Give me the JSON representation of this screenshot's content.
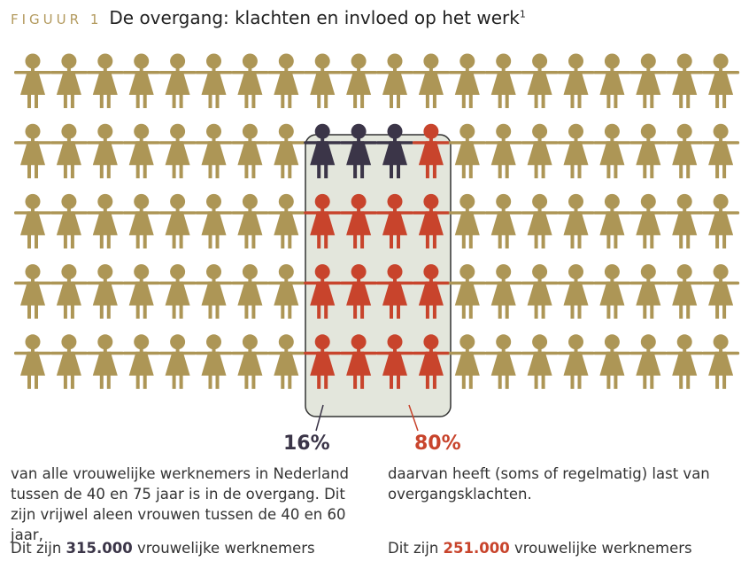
{
  "header": {
    "label": "FIGUUR 1",
    "title": "De overgang: klachten en invloed op het werk",
    "footnote": "1"
  },
  "colors": {
    "background_figure": "#ad9656",
    "menopause_figure": "#3b3548",
    "complaints_figure": "#c8442c",
    "highlight_box": "#e3e6dc"
  },
  "chart_data": {
    "type": "pictogram",
    "rows": 5,
    "columns": 20,
    "total_figures": 100,
    "highlighted_columns": [
      8,
      9,
      10,
      11
    ],
    "highlighted_rows": [
      1,
      2,
      3,
      4
    ],
    "complaints_figures_in_box": 13,
    "percentages": [
      {
        "value": "16%",
        "color": "#3b3548"
      },
      {
        "value": "80%",
        "color": "#c8442c"
      }
    ]
  },
  "left": {
    "percentage": "16%",
    "text": "van alle vrouwelijke werknemers in Nederland tussen de 40 en 75 jaar is in de overgang. Dit zijn vrijwel aleen vrouwen tussen de 40 en 60 jaar,",
    "count_prefix": "Dit zijn",
    "count_value": "315.000",
    "count_suffix": "vrouwelijke werknemers"
  },
  "right": {
    "percentage": "80%",
    "text": "daarvan heeft (soms of regelmatig) last van overgangsklachten.",
    "count_prefix": "Dit zijn",
    "count_value": "251.000",
    "count_suffix": "vrouwelijke werknemers"
  }
}
